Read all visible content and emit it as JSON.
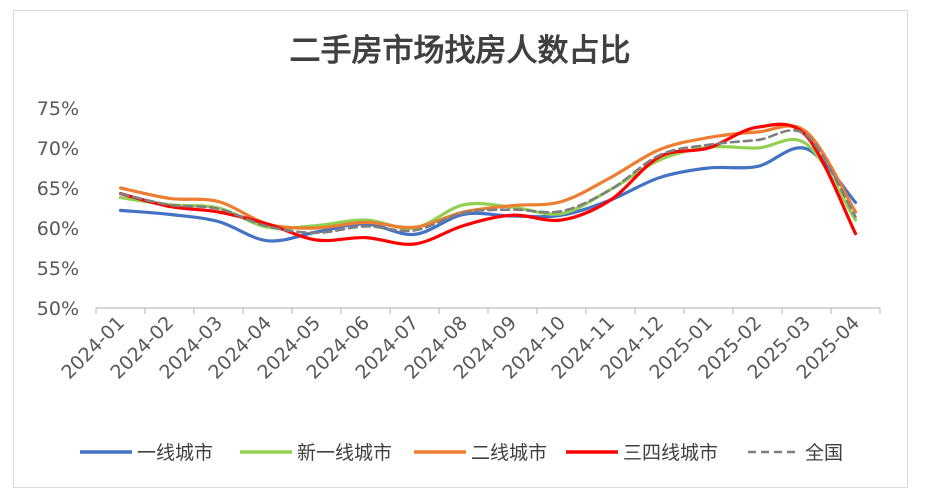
{
  "chart_data": {
    "type": "line",
    "title": "二手房市场找房人数占比",
    "xlabel": "",
    "ylabel": "",
    "ylim": [
      50,
      75
    ],
    "yticks": [
      "50%",
      "55%",
      "60%",
      "65%",
      "70%",
      "75%"
    ],
    "categories": [
      "2024-01",
      "2024-02",
      "2024-03",
      "2024-04",
      "2024-05",
      "2024-06",
      "2024-07",
      "2024-08",
      "2024-09",
      "2024-10",
      "2024-11",
      "2024-12",
      "2025-01",
      "2025-02",
      "2025-03",
      "2025-04"
    ],
    "grid": false,
    "legend_position": "bottom",
    "series": [
      {
        "name": "一线城市",
        "color": "#4472c4",
        "dash": false,
        "values": [
          62.2,
          61.7,
          60.8,
          58.4,
          59.5,
          60.5,
          59.2,
          61.7,
          61.5,
          61.6,
          63.5,
          66.3,
          67.5,
          67.7,
          69.9,
          63.2
        ]
      },
      {
        "name": "新一线城市",
        "color": "#92d050",
        "dash": false,
        "values": [
          63.8,
          62.9,
          62.5,
          60.1,
          60.3,
          61.0,
          60.0,
          62.9,
          62.6,
          61.8,
          64.8,
          68.5,
          70.1,
          70.0,
          70.5,
          61.0
        ]
      },
      {
        "name": "二线城市",
        "color": "#ed7d31",
        "dash": false,
        "values": [
          65.0,
          63.7,
          63.3,
          60.5,
          60.0,
          60.7,
          60.1,
          62.0,
          62.8,
          63.3,
          66.3,
          69.8,
          71.3,
          72.0,
          72.0,
          62.0
        ]
      },
      {
        "name": "三四线城市",
        "color": "#ff0000",
        "dash": false,
        "values": [
          64.3,
          62.7,
          62.0,
          60.5,
          58.5,
          58.8,
          58.0,
          60.3,
          61.6,
          61.0,
          63.5,
          68.9,
          70.0,
          72.6,
          71.5,
          59.3
        ]
      },
      {
        "name": "全国",
        "color": "#7f7f7f",
        "dash": true,
        "values": [
          64.3,
          62.9,
          62.4,
          60.2,
          59.4,
          60.2,
          59.7,
          61.9,
          62.3,
          62.1,
          64.8,
          69.1,
          70.4,
          71.0,
          71.6,
          61.4
        ]
      }
    ]
  }
}
